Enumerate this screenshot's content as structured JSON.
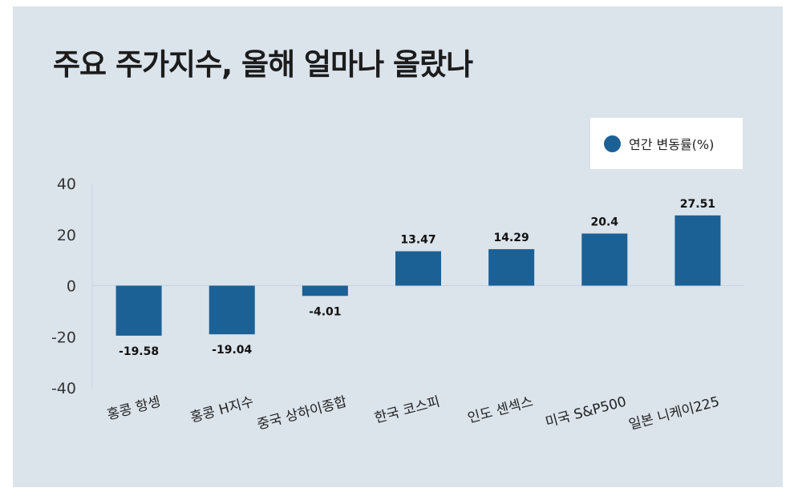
{
  "chart_data": {
    "type": "bar",
    "title": "주요 주가지수, 올해 얼마나 올랐나",
    "categories": [
      "홍콩 항셍",
      "홍콩 H지수",
      "중국 상하이종합",
      "한국 코스피",
      "인도 센섹스",
      "미국 S&P500",
      "일본 니케이225"
    ],
    "series": [
      {
        "name": "연간 변동률(%)",
        "values": [
          -19.58,
          -19.04,
          -4.01,
          13.47,
          14.29,
          20.4,
          27.51
        ],
        "color": "#1b6196"
      }
    ],
    "value_labels": [
      "-19.58",
      "-19.04",
      "-4.01",
      "13.47",
      "14.29",
      "20.4",
      "27.51"
    ],
    "ylim": [
      -40,
      40
    ],
    "yticks": [
      40,
      20,
      0,
      -20,
      -40
    ],
    "ytick_labels": [
      "40",
      "20",
      "0",
      "-20",
      "-40"
    ],
    "xlabel": "",
    "ylabel": "",
    "legend_position": "top-right",
    "grid": false,
    "background": "#dbe3eb"
  }
}
